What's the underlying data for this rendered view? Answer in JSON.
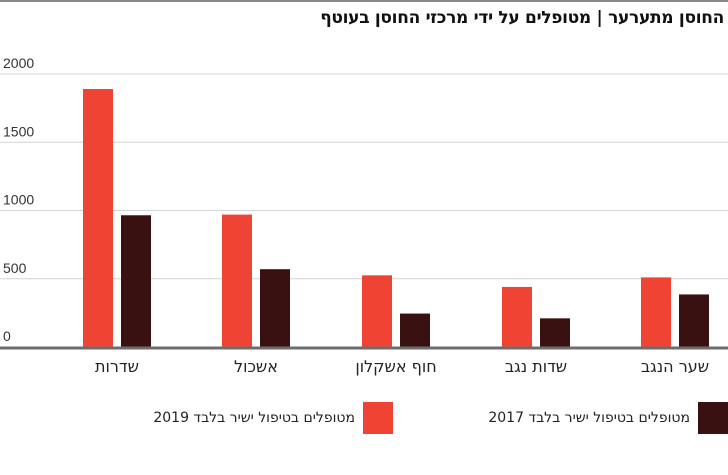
{
  "title": "החוסן מתערער | מטופלים על ידי מרכזי החוסן בעוטף",
  "colors": {
    "series_2019": "#ef4434",
    "series_2017": "#3a1111",
    "axis": "#6d6d6d",
    "grid": "#d4d4d4"
  },
  "chart_data": {
    "type": "bar",
    "title": "החוסן מתערער | מטופלים על ידי מרכזי החוסן בעוטף",
    "categories": [
      "שדרות",
      "אשכול",
      "חוף אשקלון",
      "שדות נגב",
      "שער הנגב"
    ],
    "series": [
      {
        "name": "מטופלים בטיפול ישיר בלבד 2019",
        "values": [
          1890,
          970,
          525,
          440,
          510
        ]
      },
      {
        "name": "מטופלים בטיפול ישיר בלבד 2017",
        "values": [
          965,
          570,
          245,
          210,
          385
        ]
      }
    ],
    "y_ticks": [
      "0",
      "500",
      "1000",
      "1500",
      "2000"
    ],
    "ylim": [
      0,
      2000
    ],
    "grid": true,
    "legend_position": "bottom"
  }
}
